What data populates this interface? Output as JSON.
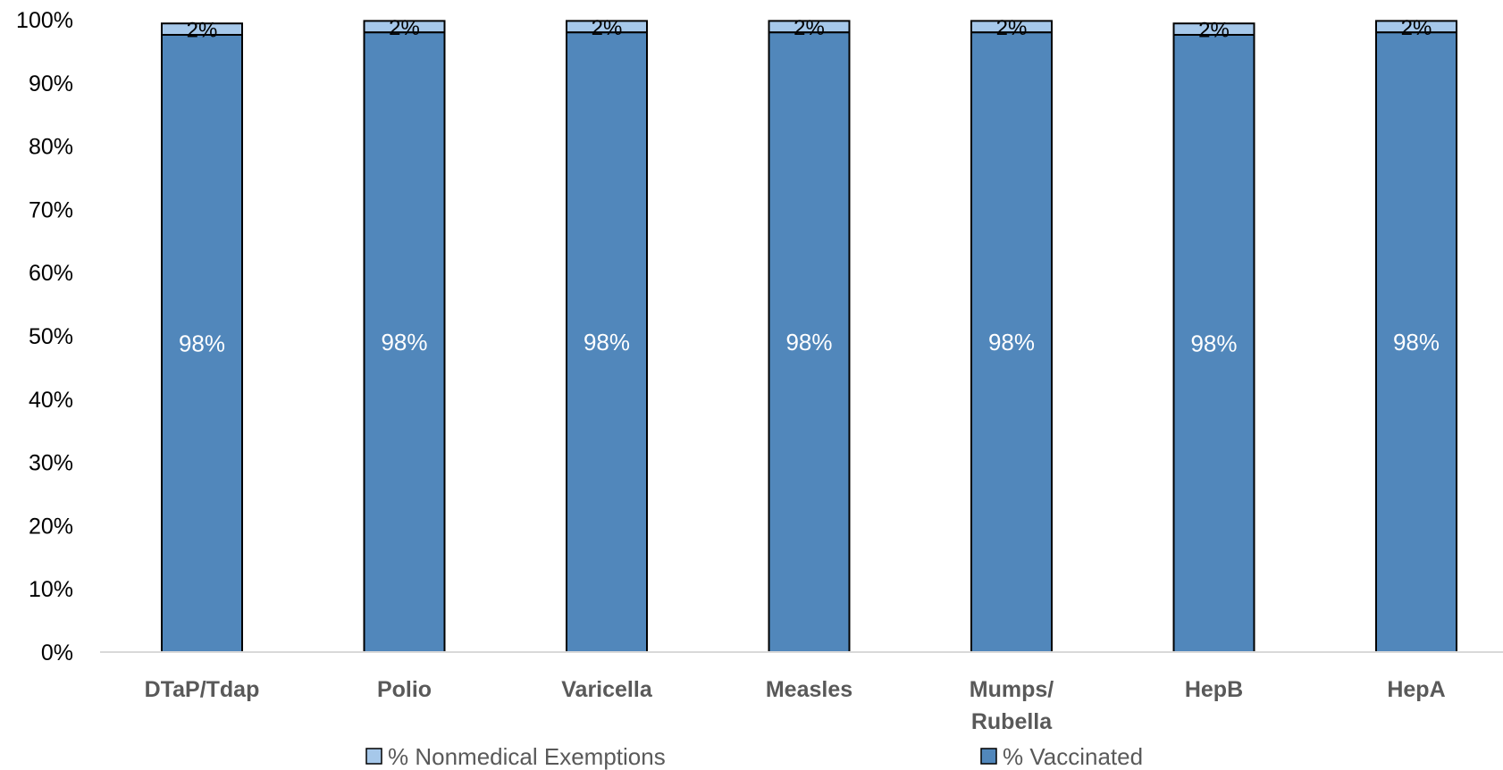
{
  "chart_data": {
    "type": "bar",
    "stacked": true,
    "categories": [
      "DTaP/Tdap",
      "Polio",
      "Varicella",
      "Measles",
      "Mumps/\nRubella",
      "HepB",
      "HepA"
    ],
    "series": [
      {
        "name": "% Vaccinated",
        "color": "#5187bb",
        "values": [
          97.6,
          98.0,
          98.0,
          98.0,
          98.0,
          97.6,
          98.0
        ],
        "labels": [
          "98%",
          "98%",
          "98%",
          "98%",
          "98%",
          "98%",
          "98%"
        ]
      },
      {
        "name": "% Nonmedical Exemptions",
        "color": "#a6c8ea",
        "values": [
          1.8,
          1.8,
          1.8,
          1.8,
          1.8,
          1.8,
          1.8
        ],
        "labels": [
          "2%",
          "2%",
          "2%",
          "2%",
          "2%",
          "2%",
          "2%"
        ]
      }
    ],
    "yticks": [
      "0%",
      "10%",
      "20%",
      "30%",
      "40%",
      "50%",
      "60%",
      "70%",
      "80%",
      "90%",
      "100%"
    ],
    "ylim": [
      0,
      100
    ],
    "legend": {
      "position": "bottom",
      "entries": [
        "% Nonmedical Exemptions",
        "% Vaccinated"
      ]
    },
    "grid": false
  }
}
